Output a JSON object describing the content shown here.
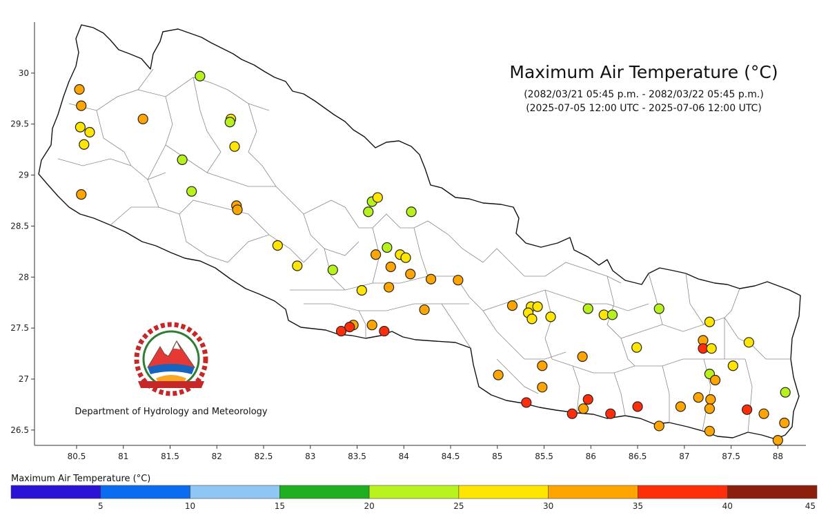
{
  "title": "Maximum Air Temperature (°C)",
  "subtitle_nepali_date": "(2082/03/21 05:45 p.m. - 2082/03/22 05:45 p.m.)",
  "subtitle_utc": "(2025-07-05 12:00 UTC - 2025-07-06 12:00 UTC)",
  "organization": "Department of Hydrology and Meteorology",
  "x_ticks": [
    "80.5",
    "81",
    "81.5",
    "82",
    "82.5",
    "83",
    "83.5",
    "84",
    "84.5",
    "85",
    "85.5",
    "86",
    "86.5",
    "87",
    "87.5",
    "88"
  ],
  "y_ticks": [
    "26.5",
    "27",
    "27.5",
    "28",
    "28.5",
    "29",
    "29.5",
    "30"
  ],
  "legend": {
    "title": "Maximum Air Temperature (°C)",
    "bins": [
      {
        "min": 0,
        "max": 5,
        "color": "#2a12d6"
      },
      {
        "min": 5,
        "max": 10,
        "color": "#0a6cf0"
      },
      {
        "min": 10,
        "max": 15,
        "color": "#8ec6f5"
      },
      {
        "min": 15,
        "max": 20,
        "color": "#1fae1f"
      },
      {
        "min": 20,
        "max": 25,
        "color": "#b8f21c"
      },
      {
        "min": 25,
        "max": 30,
        "color": "#ffe600"
      },
      {
        "min": 30,
        "max": 35,
        "color": "#ffa500"
      },
      {
        "min": 35,
        "max": 40,
        "color": "#ff2d0a"
      },
      {
        "min": 40,
        "max": 45,
        "color": "#8b1e0a"
      }
    ],
    "tick_labels": [
      "5",
      "10",
      "15",
      "20",
      "25",
      "30",
      "35",
      "40",
      "45"
    ]
  },
  "chart_data": {
    "type": "scatter",
    "title": "Maximum Air Temperature (°C)",
    "xlim": [
      80.05,
      88.3
    ],
    "ylim": [
      26.35,
      30.5
    ],
    "stations": [
      {
        "lon": 80.53,
        "lat": 29.84,
        "temp": 31
      },
      {
        "lon": 80.55,
        "lat": 29.68,
        "temp": 31
      },
      {
        "lon": 80.54,
        "lat": 29.47,
        "temp": 27
      },
      {
        "lon": 80.64,
        "lat": 29.42,
        "temp": 27
      },
      {
        "lon": 80.58,
        "lat": 29.3,
        "temp": 27
      },
      {
        "lon": 80.55,
        "lat": 28.81,
        "temp": 31
      },
      {
        "lon": 81.21,
        "lat": 29.55,
        "temp": 31
      },
      {
        "lon": 81.82,
        "lat": 29.97,
        "temp": 24
      },
      {
        "lon": 82.15,
        "lat": 29.55,
        "temp": 27
      },
      {
        "lon": 82.14,
        "lat": 29.52,
        "temp": 23
      },
      {
        "lon": 82.19,
        "lat": 29.28,
        "temp": 27
      },
      {
        "lon": 81.63,
        "lat": 29.15,
        "temp": 23
      },
      {
        "lon": 81.73,
        "lat": 28.84,
        "temp": 23
      },
      {
        "lon": 82.21,
        "lat": 28.7,
        "temp": 31
      },
      {
        "lon": 82.22,
        "lat": 28.66,
        "temp": 31
      },
      {
        "lon": 82.65,
        "lat": 28.31,
        "temp": 27
      },
      {
        "lon": 82.86,
        "lat": 28.11,
        "temp": 27
      },
      {
        "lon": 83.24,
        "lat": 28.07,
        "temp": 23
      },
      {
        "lon": 83.33,
        "lat": 27.47,
        "temp": 36
      },
      {
        "lon": 83.46,
        "lat": 27.53,
        "temp": 31
      },
      {
        "lon": 83.42,
        "lat": 27.51,
        "temp": 36
      },
      {
        "lon": 83.55,
        "lat": 27.87,
        "temp": 27
      },
      {
        "lon": 83.66,
        "lat": 27.53,
        "temp": 31
      },
      {
        "lon": 83.79,
        "lat": 27.47,
        "temp": 36
      },
      {
        "lon": 83.66,
        "lat": 28.74,
        "temp": 23
      },
      {
        "lon": 83.72,
        "lat": 28.78,
        "temp": 27
      },
      {
        "lon": 83.62,
        "lat": 28.64,
        "temp": 23
      },
      {
        "lon": 84.08,
        "lat": 28.64,
        "temp": 23
      },
      {
        "lon": 83.82,
        "lat": 28.29,
        "temp": 23
      },
      {
        "lon": 83.7,
        "lat": 28.22,
        "temp": 31
      },
      {
        "lon": 83.96,
        "lat": 28.22,
        "temp": 27
      },
      {
        "lon": 84.02,
        "lat": 28.19,
        "temp": 27
      },
      {
        "lon": 83.86,
        "lat": 28.1,
        "temp": 31
      },
      {
        "lon": 84.07,
        "lat": 28.03,
        "temp": 31
      },
      {
        "lon": 84.29,
        "lat": 27.98,
        "temp": 31
      },
      {
        "lon": 83.84,
        "lat": 27.9,
        "temp": 31
      },
      {
        "lon": 84.58,
        "lat": 27.97,
        "temp": 31
      },
      {
        "lon": 84.22,
        "lat": 27.68,
        "temp": 31
      },
      {
        "lon": 85.16,
        "lat": 27.72,
        "temp": 31
      },
      {
        "lon": 85.36,
        "lat": 27.71,
        "temp": 27
      },
      {
        "lon": 85.43,
        "lat": 27.71,
        "temp": 27
      },
      {
        "lon": 85.33,
        "lat": 27.65,
        "temp": 27
      },
      {
        "lon": 85.37,
        "lat": 27.59,
        "temp": 27
      },
      {
        "lon": 85.57,
        "lat": 27.61,
        "temp": 27
      },
      {
        "lon": 85.97,
        "lat": 27.69,
        "temp": 23
      },
      {
        "lon": 86.14,
        "lat": 27.63,
        "temp": 27
      },
      {
        "lon": 86.23,
        "lat": 27.63,
        "temp": 23
      },
      {
        "lon": 86.73,
        "lat": 27.69,
        "temp": 23
      },
      {
        "lon": 85.48,
        "lat": 27.13,
        "temp": 31
      },
      {
        "lon": 85.91,
        "lat": 27.22,
        "temp": 31
      },
      {
        "lon": 85.01,
        "lat": 27.04,
        "temp": 31
      },
      {
        "lon": 85.48,
        "lat": 26.92,
        "temp": 31
      },
      {
        "lon": 85.31,
        "lat": 26.77,
        "temp": 36
      },
      {
        "lon": 85.8,
        "lat": 26.66,
        "temp": 36
      },
      {
        "lon": 85.92,
        "lat": 26.71,
        "temp": 31
      },
      {
        "lon": 85.97,
        "lat": 26.8,
        "temp": 36
      },
      {
        "lon": 86.21,
        "lat": 26.66,
        "temp": 36
      },
      {
        "lon": 86.5,
        "lat": 26.73,
        "temp": 36
      },
      {
        "lon": 86.73,
        "lat": 26.54,
        "temp": 31
      },
      {
        "lon": 86.49,
        "lat": 27.31,
        "temp": 27
      },
      {
        "lon": 86.96,
        "lat": 26.73,
        "temp": 31
      },
      {
        "lon": 87.15,
        "lat": 26.82,
        "temp": 31
      },
      {
        "lon": 87.2,
        "lat": 27.38,
        "temp": 31
      },
      {
        "lon": 87.2,
        "lat": 27.3,
        "temp": 36
      },
      {
        "lon": 87.29,
        "lat": 27.3,
        "temp": 27
      },
      {
        "lon": 87.27,
        "lat": 27.56,
        "temp": 27
      },
      {
        "lon": 87.27,
        "lat": 27.05,
        "temp": 23
      },
      {
        "lon": 87.33,
        "lat": 26.99,
        "temp": 31
      },
      {
        "lon": 87.28,
        "lat": 26.8,
        "temp": 31
      },
      {
        "lon": 87.27,
        "lat": 26.71,
        "temp": 31
      },
      {
        "lon": 87.27,
        "lat": 26.49,
        "temp": 31
      },
      {
        "lon": 87.52,
        "lat": 27.13,
        "temp": 27
      },
      {
        "lon": 87.69,
        "lat": 27.36,
        "temp": 27
      },
      {
        "lon": 87.67,
        "lat": 26.7,
        "temp": 36
      },
      {
        "lon": 87.85,
        "lat": 26.66,
        "temp": 31
      },
      {
        "lon": 88.08,
        "lat": 26.87,
        "temp": 23
      },
      {
        "lon": 88.07,
        "lat": 26.57,
        "temp": 31
      },
      {
        "lon": 88.0,
        "lat": 26.4,
        "temp": 31
      }
    ]
  }
}
